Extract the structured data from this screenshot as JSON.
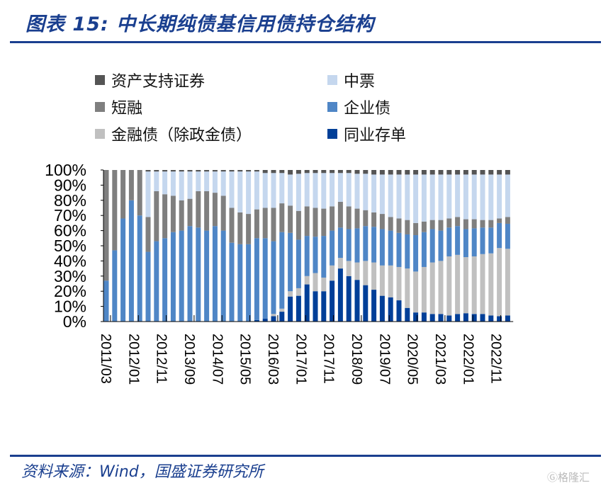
{
  "title": "图表 15:  中长期纯债基信用债持仓结构",
  "source": "资料来源：Wind，国盛证券研究所",
  "watermark": "格隆汇",
  "chart_data": {
    "type": "bar",
    "stacked": true,
    "title": "",
    "xlabel": "",
    "ylabel": "",
    "ylim": [
      0,
      100
    ],
    "y_ticks": [
      "0%",
      "10%",
      "20%",
      "30%",
      "40%",
      "50%",
      "60%",
      "70%",
      "80%",
      "90%",
      "100%"
    ],
    "x_tick_labels": [
      "2011/03",
      "2012/01",
      "2012/11",
      "2013/09",
      "2014/07",
      "2015/05",
      "2016/03",
      "2017/01",
      "2017/11",
      "2018/09",
      "2019/07",
      "2020/05",
      "2021/03",
      "2022/01",
      "2022/11"
    ],
    "legend_placement": "top",
    "grid": false,
    "categories": [
      "2011/03",
      "2011/06",
      "2011/09",
      "2011/12",
      "2012/03",
      "2012/06",
      "2012/09",
      "2012/12",
      "2013/03",
      "2013/06",
      "2013/09",
      "2013/12",
      "2014/03",
      "2014/06",
      "2014/09",
      "2014/12",
      "2015/03",
      "2015/06",
      "2015/09",
      "2015/12",
      "2016/03",
      "2016/06",
      "2016/09",
      "2016/12",
      "2017/03",
      "2017/06",
      "2017/09",
      "2017/12",
      "2018/03",
      "2018/06",
      "2018/09",
      "2018/12",
      "2019/03",
      "2019/06",
      "2019/09",
      "2019/12",
      "2020/03",
      "2020/06",
      "2020/09",
      "2020/12",
      "2021/03",
      "2021/06",
      "2021/09",
      "2021/12",
      "2022/03",
      "2022/06",
      "2022/09",
      "2022/12",
      "2023/03"
    ],
    "series": [
      {
        "name": "同业存单",
        "color": "#003f98",
        "values": [
          0,
          0,
          0,
          0,
          0,
          0,
          0,
          0,
          0,
          0,
          0,
          0,
          0,
          0,
          0,
          0,
          0,
          0,
          1,
          2,
          3.5,
          6.5,
          16.5,
          17,
          24.5,
          20,
          20,
          27,
          35,
          30,
          27.5,
          24,
          21,
          17,
          16,
          14,
          9,
          6,
          6,
          5,
          5,
          4,
          5,
          5.5,
          5,
          5,
          4,
          3.5,
          4
        ]
      },
      {
        "name": "金融债（除政金债）",
        "color": "#c0c0c0",
        "values": [
          0,
          0,
          0,
          0,
          0,
          0,
          0,
          0,
          0,
          0,
          0,
          0,
          0,
          0,
          0,
          0,
          0,
          0,
          0,
          0,
          1.5,
          2,
          3.5,
          5,
          5.5,
          12,
          9,
          10,
          7,
          10,
          11.5,
          16,
          18,
          20,
          21,
          22,
          26,
          27,
          30,
          34,
          35,
          39,
          39,
          37,
          38,
          39.5,
          41,
          45,
          44
        ]
      },
      {
        "name": "企业债",
        "color": "#4f86c6",
        "values": [
          27,
          47,
          68,
          80,
          70,
          46,
          53,
          55,
          59,
          60,
          63,
          62,
          60,
          63,
          60,
          52,
          51,
          51,
          54,
          53,
          48,
          50.5,
          38.5,
          32,
          26.5,
          24,
          27.5,
          23,
          20,
          21,
          22.5,
          23,
          23.5,
          24,
          23,
          22.5,
          22.5,
          24,
          23,
          22,
          20,
          19,
          19,
          18.5,
          18.5,
          17.5,
          17,
          16.5,
          16.5
        ]
      },
      {
        "name": "短融",
        "color": "#7f7f7f",
        "values": [
          73,
          53,
          32,
          20,
          30,
          23,
          33,
          29,
          24,
          20,
          18,
          24,
          26,
          22,
          23,
          23,
          21,
          20,
          19,
          20,
          22,
          19,
          18,
          19,
          19.5,
          19,
          18,
          16,
          17,
          15,
          13,
          10.5,
          9.5,
          10,
          9,
          9.5,
          9.5,
          8,
          7,
          6,
          7,
          6,
          6,
          6.5,
          6,
          5,
          5,
          3,
          4.5
        ]
      },
      {
        "name": "中票",
        "color": "#c5d7ee",
        "values": [
          0,
          0,
          0,
          0,
          0,
          30,
          13,
          15,
          16,
          19,
          18,
          13,
          13,
          14,
          16,
          24,
          27,
          28,
          25,
          23,
          23,
          20,
          20.5,
          24.5,
          22,
          23,
          23.5,
          22,
          19,
          22,
          23,
          24,
          25,
          26,
          28,
          29,
          30,
          32,
          31,
          30,
          30,
          29,
          28,
          29.5,
          29.5,
          30,
          30,
          29,
          28
        ]
      },
      {
        "name": "资产支持证券",
        "color": "#555555",
        "values": [
          0,
          0,
          0,
          0,
          0,
          1,
          1,
          1,
          1,
          1,
          1,
          1,
          1,
          1,
          1,
          1,
          1,
          1,
          1,
          2,
          2,
          2,
          3,
          2.5,
          2,
          2,
          2,
          2,
          2,
          2,
          2.5,
          2.5,
          3,
          3,
          3,
          3,
          3,
          3,
          3,
          3,
          3,
          3,
          3,
          3,
          3,
          3,
          3,
          3,
          3
        ]
      }
    ]
  }
}
